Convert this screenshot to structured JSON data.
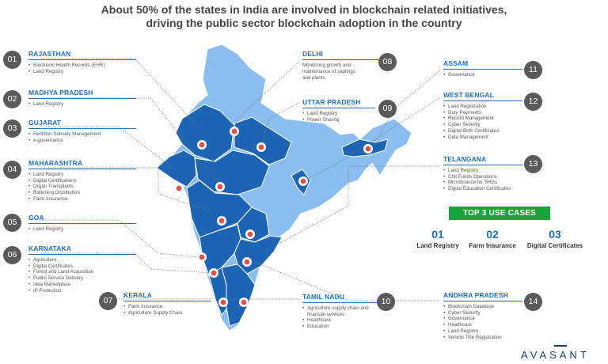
{
  "title": {
    "line1": "About 50% of the states in India are involved in blockchain related initiatives,",
    "line2": "driving the public sector blockchain adoption in the country"
  },
  "states": [
    {
      "num": "01",
      "name": "RAJASTHAN",
      "items": [
        "Electronic Health Records (EHR)",
        "Land Registry"
      ]
    },
    {
      "num": "02",
      "name": "MADHYA PRADESH",
      "items": [
        "Land Registry"
      ]
    },
    {
      "num": "03",
      "name": "GUJARAT",
      "items": [
        "Fertilizer Subsidy Management",
        "e-governance"
      ]
    },
    {
      "num": "04",
      "name": "MAHARASHTRA",
      "items": [
        "Land Registry",
        "Digital Certifications",
        "Organ Transplants",
        "Rationing Distribution",
        "Farm Insurance"
      ]
    },
    {
      "num": "05",
      "name": "GOA",
      "items": [
        "Land Registry"
      ]
    },
    {
      "num": "06",
      "name": "KARNATAKA",
      "items": [
        "Agriculture",
        "Digital Certificates",
        "Forest and Land Acquisition",
        "Public Service Delivery",
        "Idea Marketplace",
        "IP Protection"
      ]
    },
    {
      "num": "07",
      "name": "KERALA",
      "items": [
        "Farm Insurance",
        "Agriculture Supply Chain"
      ]
    },
    {
      "num": "08",
      "name": "DELHI",
      "desc": [
        "Monitoring growth and",
        "maintenance of saplings",
        "and plants"
      ]
    },
    {
      "num": "09",
      "name": "UTTAR PRADESH",
      "items": [
        "Land Registry",
        "Power Sharing"
      ]
    },
    {
      "num": "10",
      "name": "TAMIL NADU",
      "items": [
        "Agriculture supply chain and financial services",
        "Healthcare",
        "Education"
      ]
    },
    {
      "num": "11",
      "name": "ASSAM",
      "items": [
        "Governance"
      ]
    },
    {
      "num": "12",
      "name": "WEST BENGAL",
      "items": [
        "Land Registration",
        "Duty Payments",
        "Record Management",
        "Cyber Security",
        "Digital Birth Certificates",
        "Data Management"
      ]
    },
    {
      "num": "13",
      "name": "TELANGANA",
      "items": [
        "Land Registry",
        "Chit Funds Operations",
        "Microfinance for SHGs",
        "Digital Education Certificates"
      ]
    },
    {
      "num": "14",
      "name": "ANDHRA PRADESH",
      "items": [
        "Blockchain Database",
        "Cyber Security",
        "Governance",
        "Healthcare",
        "Land Registry",
        "Vehicle Title Registration"
      ]
    }
  ],
  "top3": {
    "heading": "TOP 3 USE CASES",
    "items": [
      {
        "num": "01",
        "label": "Land Registry"
      },
      {
        "num": "02",
        "label": "Farm Insurance"
      },
      {
        "num": "03",
        "label": "Digital Certificates"
      }
    ]
  },
  "logo": "AVASANT",
  "colors": {
    "dark_state": "#1e64b4",
    "light_state": "#7fb3ea",
    "badge": "#5a5a5a",
    "accent_green": "#17a43c",
    "heading_blue": "#1f6fb8"
  }
}
